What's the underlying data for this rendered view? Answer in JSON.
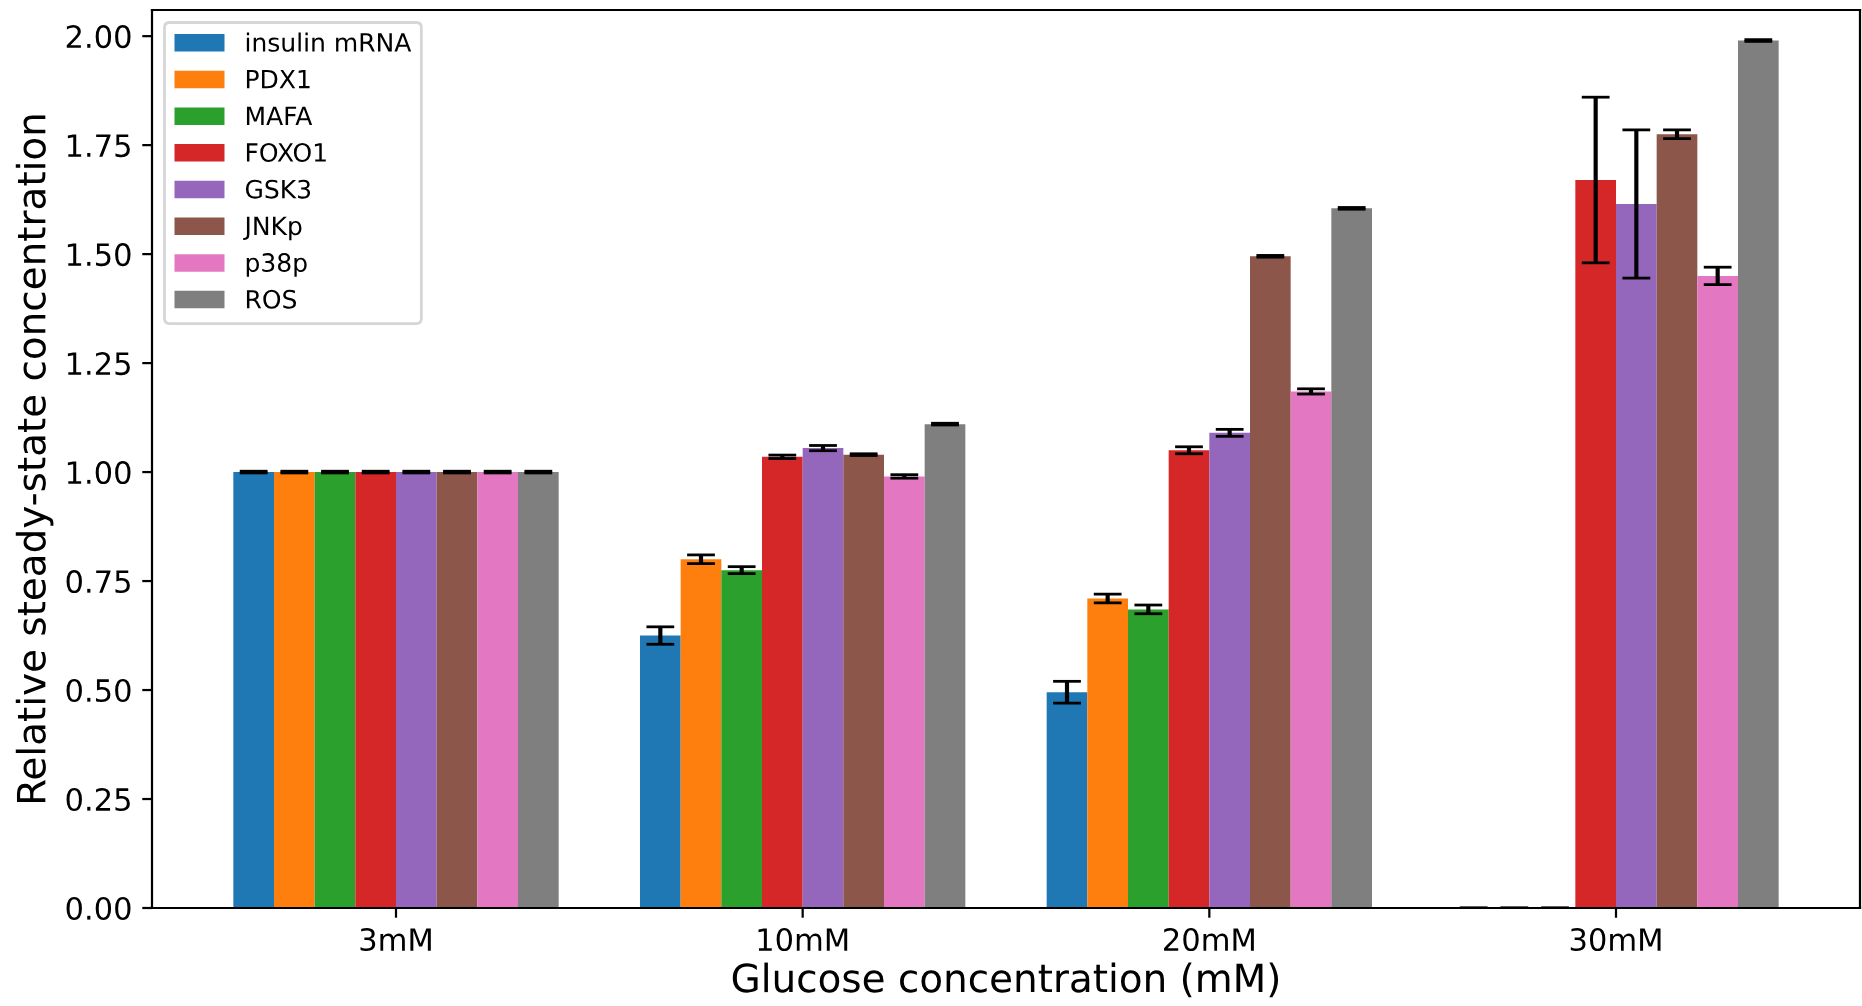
{
  "chart_data": {
    "type": "bar",
    "xlabel": "Glucose concentration (mM)",
    "ylabel": "Relative steady-state concentration",
    "categories": [
      "3mM",
      "10mM",
      "20mM",
      "30mM"
    ],
    "series": [
      {
        "name": "insulin mRNA",
        "color": "#1f77b4",
        "values": [
          1.0,
          0.625,
          0.495,
          0.0
        ],
        "errors": [
          0.002,
          0.02,
          0.025,
          0.0
        ]
      },
      {
        "name": "PDX1",
        "color": "#ff7f0e",
        "values": [
          1.0,
          0.8,
          0.71,
          0.0
        ],
        "errors": [
          0.002,
          0.01,
          0.01,
          0.0
        ]
      },
      {
        "name": "MAFA",
        "color": "#2ca02c",
        "values": [
          1.0,
          0.775,
          0.685,
          0.0
        ],
        "errors": [
          0.002,
          0.008,
          0.01,
          0.0
        ]
      },
      {
        "name": "FOXO1",
        "color": "#d62728",
        "values": [
          1.0,
          1.035,
          1.05,
          1.67
        ],
        "errors": [
          0.002,
          0.004,
          0.008,
          0.19
        ]
      },
      {
        "name": "GSK3",
        "color": "#9467bd",
        "values": [
          1.0,
          1.055,
          1.09,
          1.615
        ],
        "errors": [
          0.002,
          0.006,
          0.008,
          0.17
        ]
      },
      {
        "name": "JNKp",
        "color": "#8c564b",
        "values": [
          1.0,
          1.04,
          1.495,
          1.775
        ],
        "errors": [
          0.002,
          0.002,
          0.002,
          0.01
        ]
      },
      {
        "name": "p38p",
        "color": "#e377c2",
        "values": [
          1.0,
          0.99,
          1.185,
          1.45
        ],
        "errors": [
          0.002,
          0.004,
          0.006,
          0.02
        ]
      },
      {
        "name": "ROS",
        "color": "#7f7f7f",
        "values": [
          1.0,
          1.11,
          1.605,
          1.99
        ],
        "errors": [
          0.002,
          0.002,
          0.002,
          0.002
        ]
      }
    ],
    "ylim": [
      0,
      2.06
    ],
    "yticks": [
      {
        "value": 0,
        "label": "0.00"
      },
      {
        "value": 0.25,
        "label": "0.25"
      },
      {
        "value": 0.5,
        "label": "0.50"
      },
      {
        "value": 0.75,
        "label": "0.75"
      },
      {
        "value": 1,
        "label": "1.00"
      },
      {
        "value": 1.25,
        "label": "1.25"
      },
      {
        "value": 1.5,
        "label": "1.50"
      },
      {
        "value": 1.75,
        "label": "1.75"
      },
      {
        "value": 2,
        "label": "2.00"
      }
    ],
    "legend": "top left",
    "grid": false
  }
}
